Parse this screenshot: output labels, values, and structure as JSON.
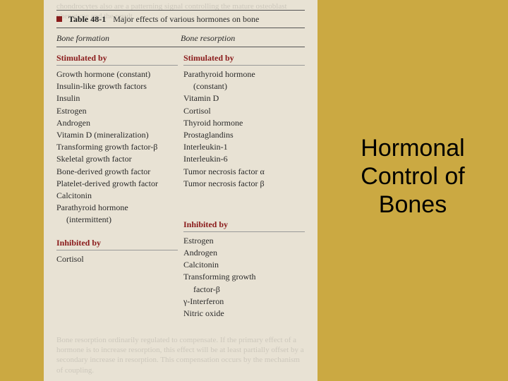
{
  "slide": {
    "title": "Hormonal Control of Bones"
  },
  "table": {
    "number": "Table 48-1",
    "caption": "Major effects of various hormones on bone",
    "columns": [
      "Bone formation",
      "Bone resorption"
    ],
    "formation": {
      "stimulated_label": "Stimulated by",
      "stimulated": [
        "Growth hormone (constant)",
        "Insulin-like growth factors",
        "Insulin",
        "Estrogen",
        "Androgen",
        "Vitamin D (mineralization)",
        "Transforming growth factor-β",
        "Skeletal growth factor",
        "Bone-derived growth factor",
        "Platelet-derived growth factor",
        "Calcitonin",
        "Parathyroid hormone",
        "  (intermittent)"
      ],
      "inhibited_label": "Inhibited by",
      "inhibited": [
        "Cortisol"
      ]
    },
    "resorption": {
      "stimulated_label": "Stimulated by",
      "stimulated": [
        "Parathyroid hormone",
        "  (constant)",
        "Vitamin D",
        "Cortisol",
        "Thyroid hormone",
        "Prostaglandins",
        "Interleukin-1",
        "Interleukin-6",
        "Tumor necrosis factor α",
        "Tumor necrosis factor β"
      ],
      "inhibited_label": "Inhibited by",
      "inhibited": [
        "Estrogen",
        "Androgen",
        "Calcitonin",
        "Transforming growth",
        "  factor-β",
        "γ-Interferon",
        "Nitric oxide"
      ]
    }
  },
  "colors": {
    "background": "#cba942",
    "paper": "#e8e2d4",
    "accent": "#8a1a1a"
  }
}
